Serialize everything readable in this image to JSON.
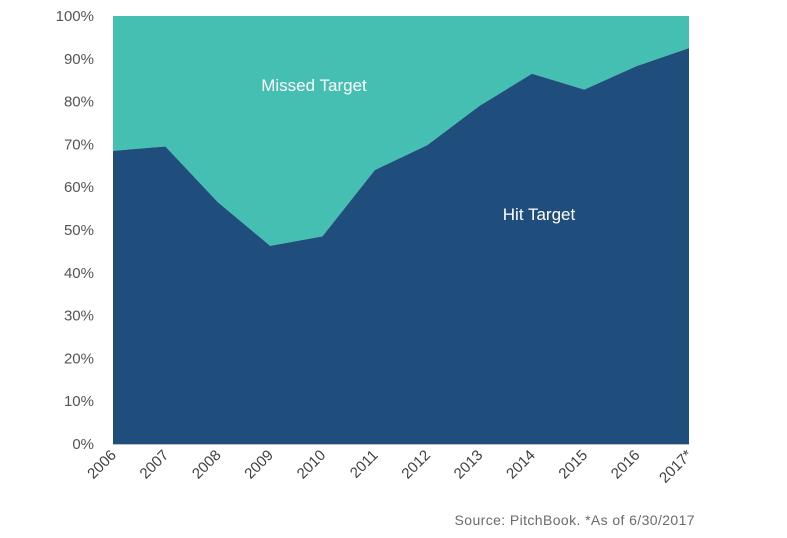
{
  "chart_data": {
    "type": "area",
    "stacked": true,
    "percent": true,
    "categories": [
      "2006",
      "2007",
      "2008",
      "2009",
      "2010",
      "2011",
      "2012",
      "2013",
      "2014",
      "2015",
      "2016",
      "2017*"
    ],
    "series": [
      {
        "name": "Hit Target",
        "color": "#1f4e7c",
        "values": [
          68.5,
          69.5,
          56.5,
          46.3,
          48.5,
          64.0,
          69.8,
          79.0,
          86.5,
          82.8,
          88.3,
          92.5
        ]
      },
      {
        "name": "Missed Target",
        "color": "#45bfb2",
        "values": [
          31.5,
          30.5,
          43.5,
          53.7,
          51.5,
          36.0,
          30.2,
          21.0,
          13.5,
          17.2,
          11.7,
          7.5
        ]
      }
    ],
    "ylim": [
      0,
      100
    ],
    "yticks": [
      "0%",
      "10%",
      "20%",
      "30%",
      "40%",
      "50%",
      "60%",
      "70%",
      "80%",
      "90%",
      "100%"
    ],
    "grid": false,
    "legend": "none",
    "source": "Source: PitchBook. *As of 6/30/2017"
  }
}
